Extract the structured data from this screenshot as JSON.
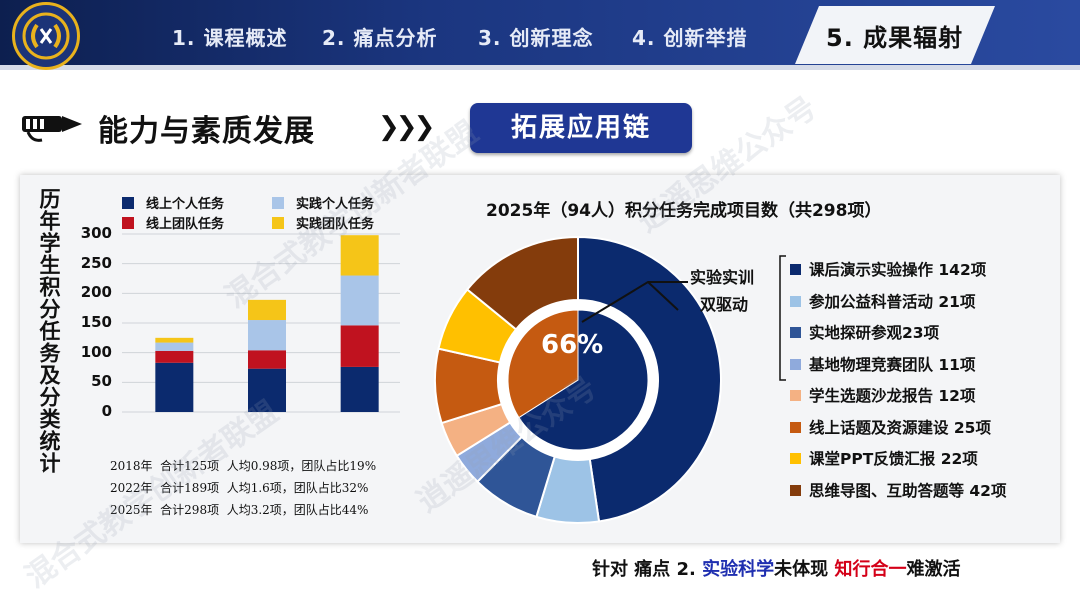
{
  "header": {
    "nav": [
      {
        "label": "1. 课程概述"
      },
      {
        "label": "2. 痛点分析"
      },
      {
        "label": "3. 创新理念"
      },
      {
        "label": "4. 创新举措"
      },
      {
        "label": "5. 成果辐射",
        "active": true
      }
    ]
  },
  "section": {
    "title": "能力与素质发展",
    "tab_label": "拓展应用链"
  },
  "chart_data": [
    {
      "type": "bar",
      "stacked": true,
      "title": "历年学生积分任务及分类统计",
      "categories": [
        "2018年",
        "2022年",
        "2025年"
      ],
      "series": [
        {
          "name": "线上个人任务",
          "color": "#0b2a6e",
          "values": [
            83,
            73,
            76
          ]
        },
        {
          "name": "线上团队任务",
          "color": "#c0121f",
          "values": [
            20,
            31,
            70
          ]
        },
        {
          "name": "实践个人任务",
          "color": "#a9c5e8",
          "values": [
            14,
            51,
            84
          ]
        },
        {
          "name": "实践团队任务",
          "color": "#f5c518",
          "values": [
            8,
            34,
            68
          ]
        }
      ],
      "ylim": [
        0,
        300
      ],
      "yticks": [
        0,
        50,
        100,
        150,
        200,
        250,
        300
      ],
      "grid": true,
      "legend_position": "top",
      "summary": [
        "2018年  合计125项  人均0.98项，团队占比19%",
        "2022年  合计189项  人均1.6项，团队占比32%",
        "2025年  合计298项  人均3.2项，团队占比44%"
      ]
    },
    {
      "type": "pie",
      "donut": true,
      "title": "2025年（94人）积分任务完成项目数（共298项）",
      "center_label": "66%",
      "inner_slices": [
        {
          "value": 66,
          "color": "#0b2a6e"
        },
        {
          "value": 34,
          "color": "#c55a11"
        }
      ],
      "slices": [
        {
          "label": "课后演示实验操作 142项",
          "value": 142,
          "color": "#0b2a6e"
        },
        {
          "label": "参加公益科普活动 21项",
          "value": 21,
          "color": "#9dc3e6"
        },
        {
          "label": "实地探研参观23项",
          "value": 23,
          "color": "#2f5597"
        },
        {
          "label": "基地物理竞赛团队 11项",
          "value": 11,
          "color": "#8faadc"
        },
        {
          "label": "学生选题沙龙报告 12项",
          "value": 12,
          "color": "#f4b183"
        },
        {
          "label": "线上话题及资源建设 25项",
          "value": 25,
          "color": "#c55a11"
        },
        {
          "label": "课堂PPT反馈汇报 22项",
          "value": 22,
          "color": "#ffc000"
        },
        {
          "label": "思维导图、互助答题等 42项",
          "value": 42,
          "color": "#843c0c"
        }
      ],
      "callout": [
        "实验实训",
        "双驱动"
      ]
    }
  ],
  "footer": {
    "part1": "针对  痛点 2. ",
    "part2": "实验科学",
    "part3": "未体现  ",
    "part4": "知行合一",
    "part5": "难激活"
  },
  "watermarks": [
    "混合式教学创新者联盟",
    "逍遥思维公众号"
  ]
}
